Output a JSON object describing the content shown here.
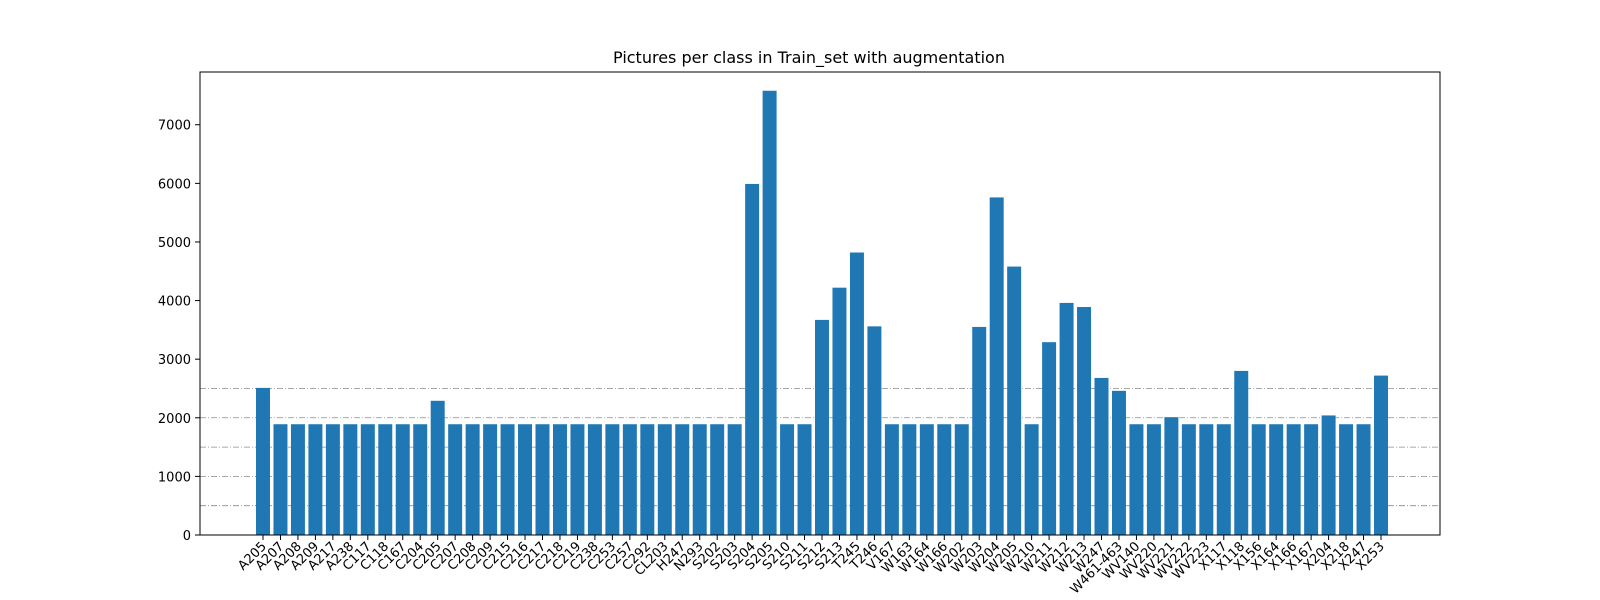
{
  "chart_data": {
    "type": "bar",
    "title": "Pictures per class in Train_set with augmentation",
    "xlabel": "",
    "ylabel": "",
    "ylim": [
      0,
      7900
    ],
    "yticks": [
      0,
      1000,
      2000,
      3000,
      4000,
      5000,
      6000,
      7000
    ],
    "reference_lines": [
      500,
      1000,
      1500,
      2000,
      2500
    ],
    "bar_color": "#1f77b4",
    "grid": false,
    "categories": [
      "A205",
      "A207",
      "A208",
      "A209",
      "A217",
      "A238",
      "C117",
      "C118",
      "C167",
      "C204",
      "C205",
      "C207",
      "C208",
      "C209",
      "C215",
      "C216",
      "C217",
      "C218",
      "C219",
      "C238",
      "C253",
      "C257",
      "C292",
      "CL203",
      "H247",
      "N293",
      "S202",
      "S203",
      "S204",
      "S205",
      "S210",
      "S211",
      "S212",
      "S213",
      "T245",
      "T246",
      "V167",
      "W163",
      "W164",
      "W166",
      "W202",
      "W203",
      "W204",
      "W205",
      "W210",
      "W211",
      "W212",
      "W213",
      "W247",
      "W461-463",
      "WV140",
      "WV220",
      "WV221",
      "WV222",
      "WV223",
      "X117",
      "X118",
      "X156",
      "X164",
      "X166",
      "X167",
      "X204",
      "X218",
      "X247",
      "X253"
    ],
    "values": [
      2510,
      1890,
      1890,
      1890,
      1890,
      1890,
      1890,
      1890,
      1890,
      1890,
      2290,
      1890,
      1890,
      1890,
      1890,
      1890,
      1890,
      1890,
      1890,
      1890,
      1890,
      1890,
      1890,
      1890,
      1890,
      1890,
      1890,
      1890,
      5990,
      7580,
      1890,
      1890,
      3670,
      4220,
      4820,
      3560,
      1890,
      1890,
      1890,
      1890,
      1890,
      3550,
      5760,
      4580,
      1890,
      3290,
      3960,
      3890,
      2680,
      2460,
      1890,
      1890,
      2010,
      1890,
      1890,
      1890,
      2800,
      1890,
      1890,
      1890,
      1890,
      2040,
      1890,
      1890,
      2720
    ]
  }
}
